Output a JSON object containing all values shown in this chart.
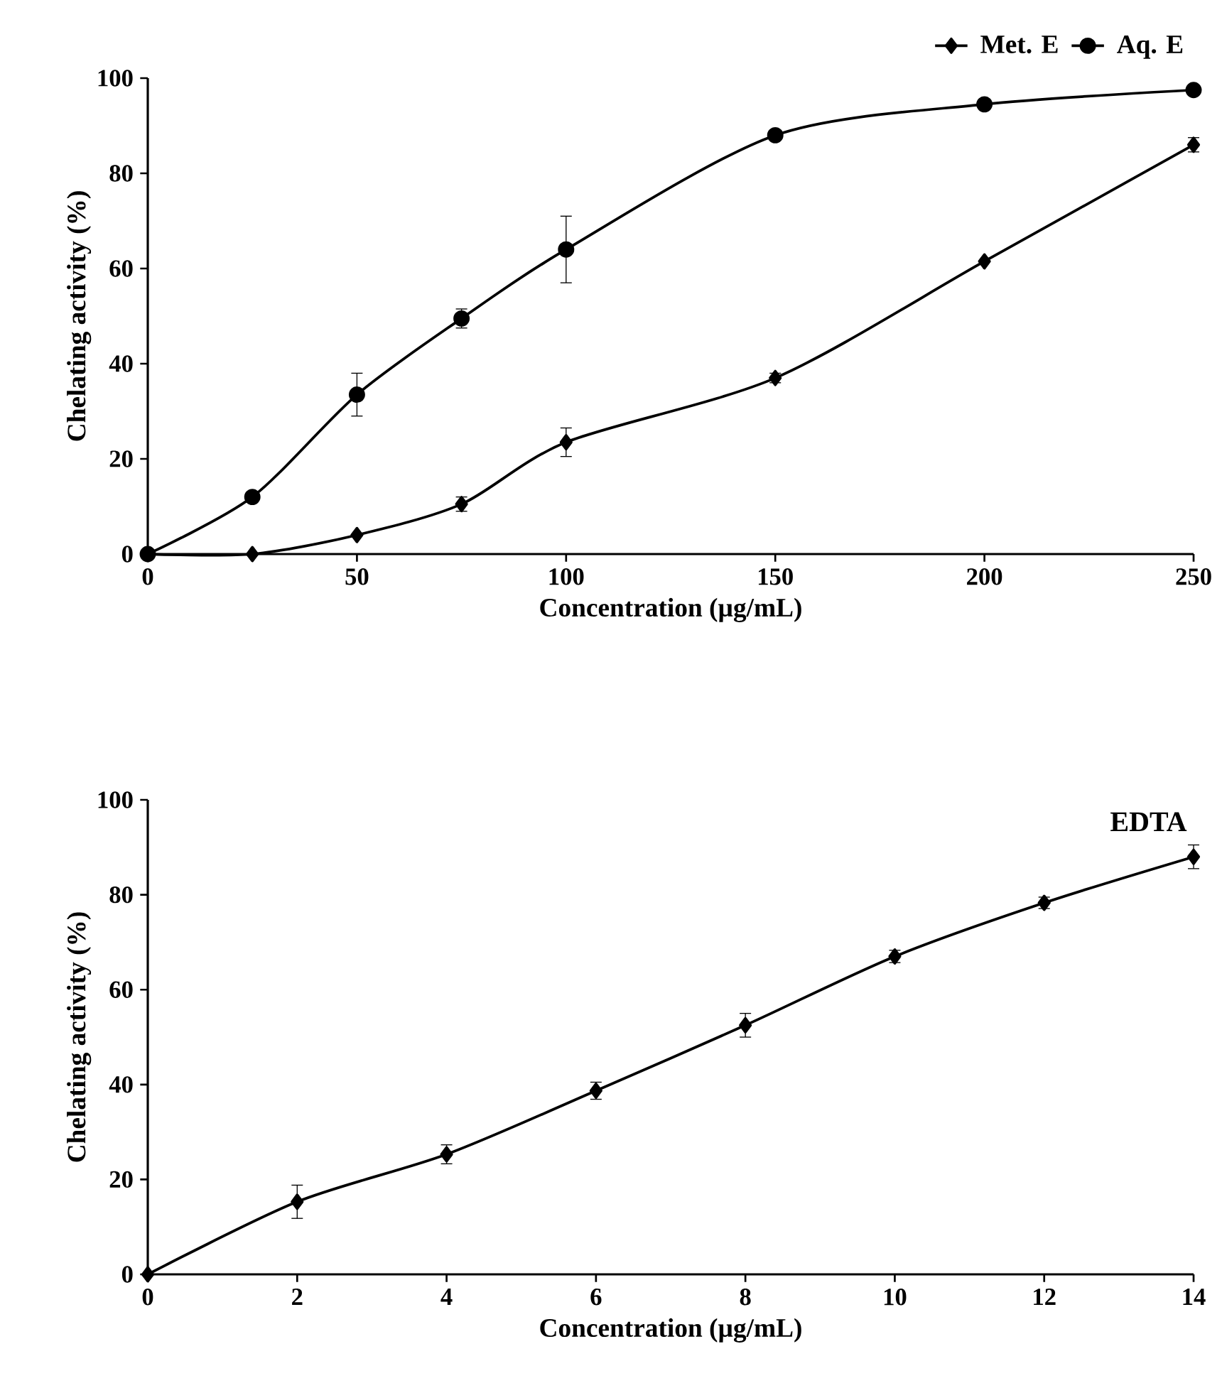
{
  "chart_data": [
    {
      "type": "line",
      "xlabel": "Concentration (µg/mL)",
      "ylabel": "Chelating activity (%)",
      "xlim": [
        0,
        250
      ],
      "ylim": [
        0,
        100
      ],
      "xticks": [
        0,
        50,
        100,
        150,
        200,
        250
      ],
      "yticks": [
        0,
        20,
        40,
        60,
        80,
        100
      ],
      "legend": "top right",
      "line_style": "solid",
      "x": [
        0,
        25,
        50,
        75,
        100,
        150,
        200,
        250
      ],
      "series": [
        {
          "name": "Met. E",
          "color": "#000000",
          "marker": "diamond",
          "values": [
            0,
            0,
            4,
            10.5,
            23.5,
            37,
            61.5,
            86
          ],
          "errors": [
            null,
            null,
            null,
            1.5,
            3,
            1,
            null,
            1.5
          ]
        },
        {
          "name": "Aq. E",
          "color": "#000000",
          "marker": "circle",
          "values": [
            0,
            12,
            33.5,
            49.5,
            64,
            88,
            94.5,
            97.5
          ],
          "errors": [
            null,
            null,
            4.5,
            2,
            7,
            1,
            1,
            null
          ]
        }
      ]
    },
    {
      "type": "line",
      "xlabel": "Concentration (µg/mL)",
      "ylabel": "Chelating activity (%)",
      "xlim": [
        0,
        14
      ],
      "ylim": [
        0,
        100
      ],
      "xticks": [
        0,
        2,
        4,
        6,
        8,
        10,
        12,
        14
      ],
      "yticks": [
        0,
        20,
        40,
        60,
        80,
        100
      ],
      "line_style": "solid",
      "x": [
        0,
        2,
        4,
        6,
        8,
        10,
        12,
        14
      ],
      "series": [
        {
          "name": "EDTA",
          "color": "#000000",
          "marker": "diamond",
          "values": [
            0,
            15.3,
            25.3,
            38.7,
            52.5,
            67,
            78.3,
            88
          ],
          "errors": [
            null,
            3.5,
            2,
            1.8,
            2.5,
            1.3,
            1.2,
            2.5
          ]
        }
      ]
    }
  ]
}
